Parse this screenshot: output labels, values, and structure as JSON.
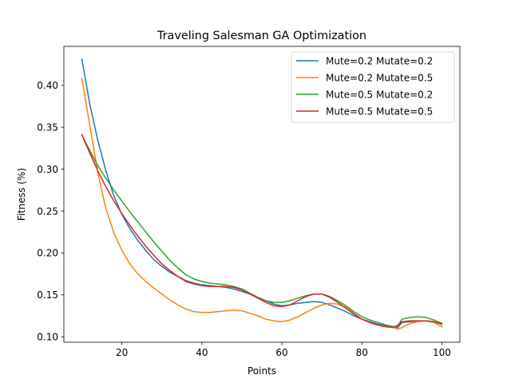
{
  "chart_data": {
    "type": "line",
    "title": "Traveling Salesman GA Optimization",
    "xlabel": "Points",
    "ylabel": "Fitness (%)",
    "xlim": [
      5.5,
      104.5
    ],
    "ylim": [
      0.0935,
      0.4465
    ],
    "xticks": [
      20,
      40,
      60,
      80,
      100
    ],
    "xtick_labels": [
      "20",
      "40",
      "60",
      "80",
      "100"
    ],
    "yticks": [
      0.1,
      0.15,
      0.2,
      0.25,
      0.3,
      0.35,
      0.4
    ],
    "ytick_labels": [
      "0.10",
      "0.15",
      "0.20",
      "0.25",
      "0.30",
      "0.35",
      "0.40"
    ],
    "grid": false,
    "legend_position": "top-right",
    "series": [
      {
        "name": "Mute=0.2 Mutate=0.2",
        "color": "#1f77b4",
        "x": [
          10,
          12,
          14,
          16,
          18,
          20,
          22,
          24,
          26,
          28,
          30,
          32,
          34,
          36,
          38,
          40,
          42,
          44,
          46,
          48,
          50,
          52,
          54,
          56,
          58,
          60,
          62,
          64,
          66,
          68,
          70,
          72,
          74,
          76,
          78,
          80,
          82,
          84,
          86,
          88,
          89,
          90,
          92,
          94,
          96,
          98,
          100
        ],
        "y": [
          0.431,
          0.377,
          0.334,
          0.298,
          0.268,
          0.246,
          0.229,
          0.215,
          0.203,
          0.192,
          0.184,
          0.177,
          0.172,
          0.167,
          0.164,
          0.162,
          0.161,
          0.16,
          0.159,
          0.157,
          0.154,
          0.151,
          0.147,
          0.143,
          0.139,
          0.137,
          0.138,
          0.14,
          0.141,
          0.142,
          0.141,
          0.138,
          0.134,
          0.13,
          0.125,
          0.121,
          0.118,
          0.115,
          0.113,
          0.112,
          0.111,
          0.117,
          0.118,
          0.119,
          0.119,
          0.118,
          0.115
        ]
      },
      {
        "name": "Mute=0.2 Mutate=0.5",
        "color": "#ff7f0e",
        "x": [
          10,
          12,
          14,
          16,
          18,
          20,
          22,
          24,
          26,
          28,
          30,
          32,
          34,
          36,
          38,
          40,
          42,
          44,
          46,
          48,
          50,
          52,
          54,
          56,
          58,
          60,
          62,
          64,
          66,
          68,
          70,
          72,
          74,
          76,
          78,
          80,
          82,
          84,
          86,
          88,
          89,
          90,
          92,
          94,
          96,
          98,
          100
        ],
        "y": [
          0.408,
          0.352,
          0.295,
          0.253,
          0.224,
          0.203,
          0.187,
          0.175,
          0.166,
          0.158,
          0.151,
          0.144,
          0.138,
          0.133,
          0.13,
          0.129,
          0.129,
          0.13,
          0.131,
          0.132,
          0.131,
          0.128,
          0.125,
          0.121,
          0.119,
          0.118,
          0.12,
          0.124,
          0.129,
          0.134,
          0.138,
          0.14,
          0.139,
          0.135,
          0.128,
          0.121,
          0.117,
          0.114,
          0.112,
          0.111,
          0.109,
          0.111,
          0.116,
          0.118,
          0.119,
          0.117,
          0.112
        ]
      },
      {
        "name": "Mute=0.5 Mutate=0.2",
        "color": "#2ca02c",
        "x": [
          10,
          12,
          14,
          16,
          18,
          20,
          22,
          24,
          26,
          28,
          30,
          32,
          34,
          36,
          38,
          40,
          42,
          44,
          46,
          48,
          50,
          52,
          54,
          56,
          58,
          60,
          62,
          64,
          66,
          68,
          70,
          72,
          74,
          76,
          78,
          80,
          82,
          84,
          86,
          88,
          89,
          90,
          92,
          94,
          96,
          98,
          100
        ],
        "y": [
          0.341,
          0.322,
          0.304,
          0.289,
          0.275,
          0.262,
          0.249,
          0.237,
          0.225,
          0.213,
          0.202,
          0.191,
          0.182,
          0.174,
          0.169,
          0.166,
          0.164,
          0.163,
          0.162,
          0.16,
          0.157,
          0.152,
          0.147,
          0.143,
          0.141,
          0.141,
          0.143,
          0.146,
          0.149,
          0.151,
          0.151,
          0.148,
          0.143,
          0.137,
          0.13,
          0.124,
          0.12,
          0.117,
          0.114,
          0.112,
          0.113,
          0.121,
          0.123,
          0.124,
          0.123,
          0.12,
          0.116
        ]
      },
      {
        "name": "Mute=0.5 Mutate=0.5",
        "color": "#d62728",
        "x": [
          10,
          12,
          14,
          16,
          18,
          20,
          22,
          24,
          26,
          28,
          30,
          32,
          34,
          36,
          38,
          40,
          42,
          44,
          46,
          48,
          50,
          52,
          54,
          56,
          58,
          60,
          62,
          64,
          66,
          68,
          70,
          72,
          74,
          76,
          78,
          80,
          82,
          84,
          86,
          88,
          89,
          90,
          92,
          94,
          96,
          98,
          100
        ],
        "y": [
          0.341,
          0.319,
          0.298,
          0.279,
          0.262,
          0.247,
          0.233,
          0.22,
          0.208,
          0.197,
          0.187,
          0.179,
          0.172,
          0.166,
          0.163,
          0.161,
          0.16,
          0.16,
          0.16,
          0.159,
          0.156,
          0.151,
          0.146,
          0.141,
          0.137,
          0.136,
          0.138,
          0.143,
          0.148,
          0.151,
          0.151,
          0.147,
          0.141,
          0.134,
          0.127,
          0.121,
          0.117,
          0.114,
          0.112,
          0.111,
          0.114,
          0.118,
          0.119,
          0.119,
          0.119,
          0.118,
          0.115
        ]
      }
    ]
  }
}
